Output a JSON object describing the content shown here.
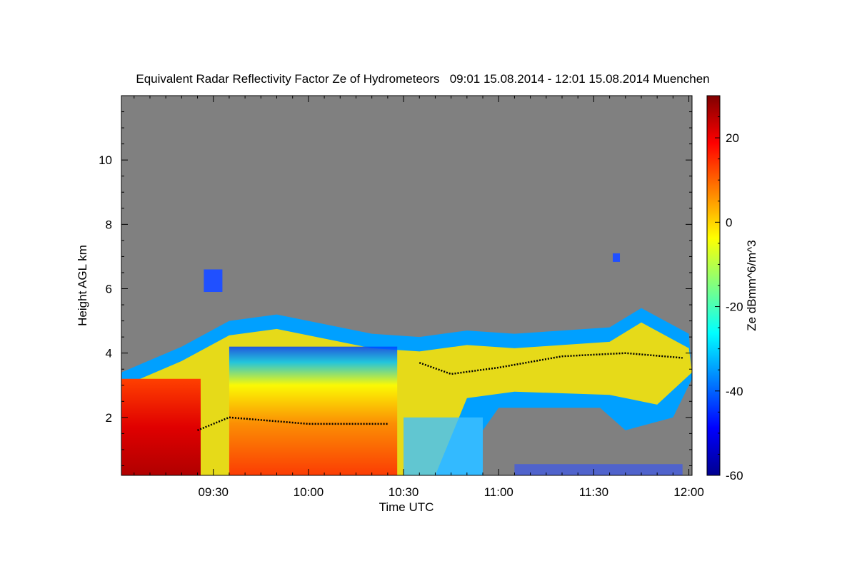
{
  "chart_data": {
    "type": "heatmap",
    "title": "Equivalent Radar Reflectivity Factor Ze of Hydrometeors   09:01 15.08.2014 - 12:01 15.08.2014 Muenchen",
    "xlabel": "Time UTC",
    "ylabel": "Height AGL km",
    "colorbar_label": "Ze dBmm^6/m^3",
    "x_range": [
      "09:01",
      "12:01"
    ],
    "x_ticks": [
      "09:30",
      "10:00",
      "10:30",
      "11:00",
      "11:30",
      "12:00"
    ],
    "ylim": [
      0.2,
      12
    ],
    "y_ticks": [
      "2",
      "4",
      "6",
      "8",
      "10"
    ],
    "colorbar_range": [
      -60,
      30
    ],
    "colorbar_ticks": [
      "20",
      "0",
      "-20",
      "-40",
      "-60"
    ],
    "colormap": [
      "#00008f",
      "#0000ff",
      "#0080ff",
      "#00ffff",
      "#80ff80",
      "#ffff00",
      "#ff8000",
      "#ff0000",
      "#800000"
    ],
    "background_color": "#808080",
    "features": {
      "cloud_top_km": [
        {
          "time": "09:01",
          "km": 3.4
        },
        {
          "time": "09:20",
          "km": 4.2
        },
        {
          "time": "09:35",
          "km": 5.0
        },
        {
          "time": "09:50",
          "km": 5.2
        },
        {
          "time": "10:05",
          "km": 4.9
        },
        {
          "time": "10:20",
          "km": 4.6
        },
        {
          "time": "10:35",
          "km": 4.5
        },
        {
          "time": "10:50",
          "km": 4.7
        },
        {
          "time": "11:05",
          "km": 4.6
        },
        {
          "time": "11:20",
          "km": 4.7
        },
        {
          "time": "11:35",
          "km": 4.8
        },
        {
          "time": "11:45",
          "km": 5.4
        },
        {
          "time": "12:00",
          "km": 4.6
        }
      ],
      "melting_layer_km": [
        {
          "time": "09:25",
          "km": 1.6
        },
        {
          "time": "09:35",
          "km": 2.0
        },
        {
          "time": "10:00",
          "km": 1.8
        },
        {
          "time": "10:25",
          "km": 1.8
        }
      ],
      "cloud_base_km": [
        {
          "time": "10:35",
          "km": 3.7
        },
        {
          "time": "10:45",
          "km": 3.35
        },
        {
          "time": "11:00",
          "km": 3.55
        },
        {
          "time": "11:20",
          "km": 3.9
        },
        {
          "time": "11:40",
          "km": 4.0
        },
        {
          "time": "11:58",
          "km": 3.85
        }
      ]
    }
  }
}
